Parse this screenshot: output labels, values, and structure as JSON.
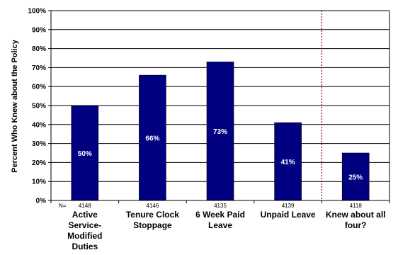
{
  "chart_data": {
    "type": "bar",
    "ylabel": "Percent Who Knew about the Policy",
    "ylim": [
      0,
      100
    ],
    "y_ticks": [
      "0%",
      "10%",
      "20%",
      "30%",
      "40%",
      "50%",
      "60%",
      "70%",
      "80%",
      "90%",
      "100%"
    ],
    "grid": true,
    "bar_color": "#000080",
    "separator_color": "#8b0000",
    "n_prefix": "N=",
    "categories": [
      {
        "label_lines": [
          "Active",
          "Service-",
          "Modified",
          "Duties"
        ],
        "value": 50,
        "data_label": "50%",
        "n": "4148"
      },
      {
        "label_lines": [
          "Tenure Clock",
          "Stoppage"
        ],
        "value": 66,
        "data_label": "66%",
        "n": "4146"
      },
      {
        "label_lines": [
          "6 Week Paid",
          "Leave"
        ],
        "value": 73,
        "data_label": "73%",
        "n": "4135"
      },
      {
        "label_lines": [
          "Unpaid Leave"
        ],
        "value": 41,
        "data_label": "41%",
        "n": "4139"
      },
      {
        "label_lines": [
          "Knew about all",
          "four?"
        ],
        "value": 25,
        "data_label": "25%",
        "n": "4118"
      }
    ]
  }
}
